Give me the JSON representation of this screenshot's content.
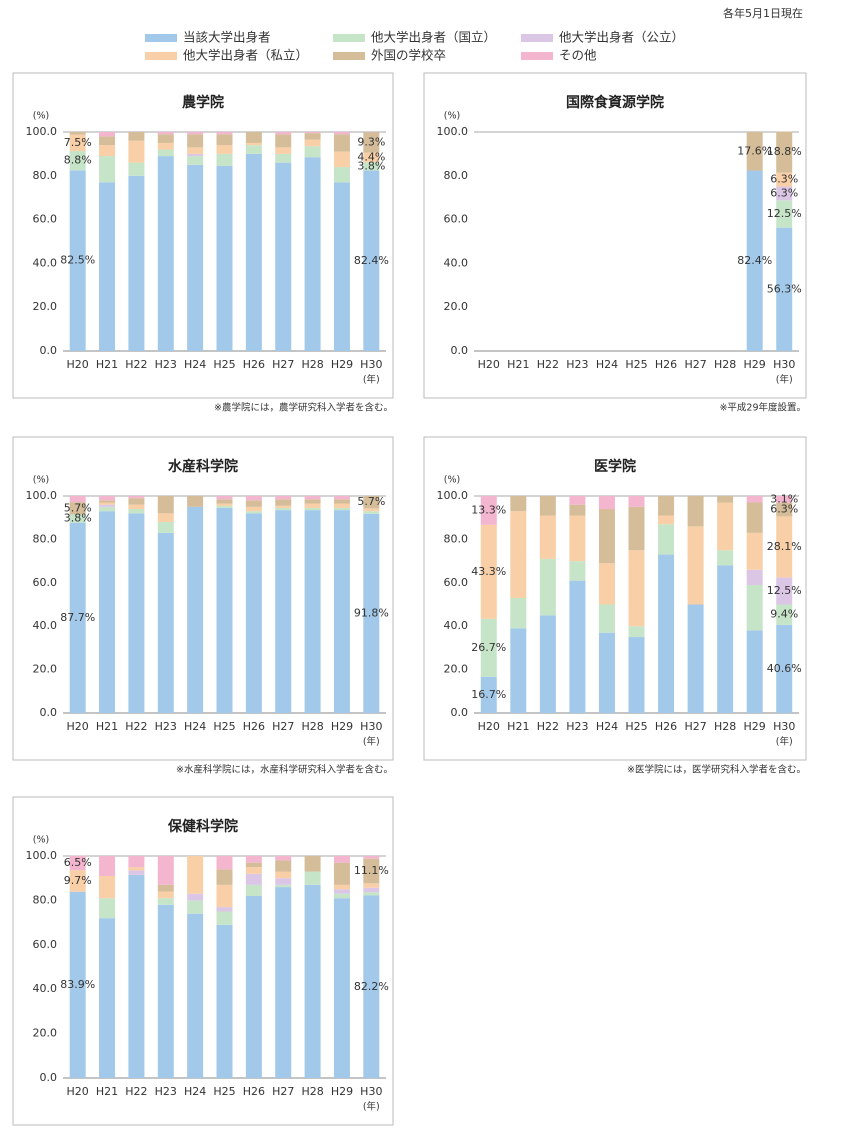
{
  "note": "各年5月1日現在",
  "legend": [
    {
      "name": "当該大学出身者",
      "color": "#a3c9ea"
    },
    {
      "name": "他大学出身者（国立）",
      "color": "#c6e4c8"
    },
    {
      "name": "他大学出身者（公立）",
      "color": "#dcc6e6"
    },
    {
      "name": "他大学出身者（私立）",
      "color": "#f8cfa6"
    },
    {
      "name": "外国の学校卒",
      "color": "#d5bd9a"
    },
    {
      "name": "その他",
      "color": "#f4b6cf"
    }
  ],
  "chart_data": [
    {
      "type": "bar",
      "title": "農学院",
      "y_label": "(%)",
      "x_unit": "(年)",
      "footnote": "※農学院には，農学研究科入学者を含む。",
      "categories": [
        "H20",
        "H21",
        "H22",
        "H23",
        "H24",
        "H25",
        "H26",
        "H27",
        "H28",
        "H29",
        "H30"
      ],
      "ylim": [
        0,
        100
      ],
      "yticks": [
        {
          "value": 0,
          "label": "0.0"
        },
        {
          "value": 20,
          "label": "20.0"
        },
        {
          "value": 40,
          "label": "40.0"
        },
        {
          "value": 60,
          "label": "60.0"
        },
        {
          "value": 80,
          "label": "80.0"
        },
        {
          "value": 100,
          "label": "100.0"
        }
      ],
      "series": [
        {
          "values": [
            82.5,
            77,
            80,
            89,
            85,
            84.5,
            90,
            86,
            88.5,
            77,
            82.4
          ],
          "value_labels": [
            "82.5%",
            null,
            null,
            null,
            null,
            null,
            null,
            null,
            null,
            null,
            "82.4%"
          ]
        },
        {
          "values": [
            8.8,
            12,
            6,
            3,
            4,
            5.5,
            4,
            4,
            5,
            7,
            3.8
          ],
          "value_labels": [
            "8.8%",
            null,
            null,
            null,
            null,
            null,
            null,
            null,
            null,
            null,
            "3.8%"
          ]
        },
        {
          "values": [
            0,
            0,
            0,
            0,
            1,
            0,
            0,
            0,
            0,
            0,
            0
          ]
        },
        {
          "values": [
            7.5,
            5,
            10,
            3,
            3,
            4,
            1,
            3,
            3,
            7,
            4.4
          ],
          "value_labels": [
            "7.5%",
            null,
            null,
            null,
            null,
            null,
            null,
            null,
            null,
            null,
            "4.4%"
          ]
        },
        {
          "values": [
            1.2,
            4,
            4,
            4,
            6,
            5,
            5,
            6,
            3,
            8,
            9.3
          ],
          "value_labels": [
            null,
            null,
            null,
            null,
            null,
            null,
            null,
            null,
            null,
            null,
            "9.3%"
          ]
        },
        {
          "values": [
            0,
            2,
            0,
            1,
            1,
            1,
            0,
            1,
            0.5,
            1,
            0.1
          ]
        }
      ]
    },
    {
      "type": "bar",
      "title": "国際食資源学院",
      "y_label": "(%)",
      "x_unit": "(年)",
      "footnote": "※平成29年度設置。",
      "categories": [
        "H20",
        "H21",
        "H22",
        "H23",
        "H24",
        "H25",
        "H26",
        "H27",
        "H28",
        "H29",
        "H30"
      ],
      "ylim": [
        0,
        100
      ],
      "yticks": [
        {
          "value": 0,
          "label": "0.0"
        },
        {
          "value": 20,
          "label": "20.0"
        },
        {
          "value": 40,
          "label": "40.0"
        },
        {
          "value": 60,
          "label": "60.0"
        },
        {
          "value": 80,
          "label": "80.0"
        },
        {
          "value": 100,
          "label": "100.0"
        }
      ],
      "series": [
        {
          "values": [
            null,
            null,
            null,
            null,
            null,
            null,
            null,
            null,
            null,
            82.4,
            56.3
          ],
          "value_labels": [
            null,
            null,
            null,
            null,
            null,
            null,
            null,
            null,
            null,
            "82.4%",
            "56.3%"
          ]
        },
        {
          "values": [
            null,
            null,
            null,
            null,
            null,
            null,
            null,
            null,
            null,
            0,
            12.5
          ],
          "value_labels": [
            null,
            null,
            null,
            null,
            null,
            null,
            null,
            null,
            null,
            null,
            "12.5%"
          ]
        },
        {
          "values": [
            null,
            null,
            null,
            null,
            null,
            null,
            null,
            null,
            null,
            0,
            6.3
          ],
          "value_labels": [
            null,
            null,
            null,
            null,
            null,
            null,
            null,
            null,
            null,
            null,
            "6.3%"
          ]
        },
        {
          "values": [
            null,
            null,
            null,
            null,
            null,
            null,
            null,
            null,
            null,
            0,
            6.3
          ],
          "value_labels": [
            null,
            null,
            null,
            null,
            null,
            null,
            null,
            null,
            null,
            null,
            "6.3%"
          ]
        },
        {
          "values": [
            null,
            null,
            null,
            null,
            null,
            null,
            null,
            null,
            null,
            17.6,
            18.8
          ],
          "value_labels": [
            null,
            null,
            null,
            null,
            null,
            null,
            null,
            null,
            null,
            "17.6%",
            "18.8%"
          ]
        },
        {
          "values": [
            null,
            null,
            null,
            null,
            null,
            null,
            null,
            null,
            null,
            0,
            0
          ]
        }
      ]
    },
    {
      "type": "bar",
      "title": "水産科学院",
      "y_label": "(%)",
      "x_unit": "(年)",
      "footnote": "※水産科学院には，水産科学研究科入学者を含む。",
      "categories": [
        "H20",
        "H21",
        "H22",
        "H23",
        "H24",
        "H25",
        "H26",
        "H27",
        "H28",
        "H29",
        "H30"
      ],
      "ylim": [
        0,
        100
      ],
      "yticks": [
        {
          "value": 0,
          "label": "0.0"
        },
        {
          "value": 20,
          "label": "20.0"
        },
        {
          "value": 40,
          "label": "40.0"
        },
        {
          "value": 60,
          "label": "60.0"
        },
        {
          "value": 80,
          "label": "80.0"
        },
        {
          "value": 100,
          "label": "100.0"
        }
      ],
      "series": [
        {
          "values": [
            87.7,
            93,
            92,
            83,
            95,
            94.5,
            92,
            93.5,
            93.5,
            93.5,
            91.8
          ],
          "value_labels": [
            "87.7%",
            null,
            null,
            null,
            null,
            null,
            null,
            null,
            null,
            null,
            "91.8%"
          ]
        },
        {
          "values": [
            3.8,
            2,
            2,
            5,
            0,
            1,
            1,
            1,
            1,
            1,
            1.2
          ],
          "value_labels": [
            "3.8%",
            null,
            null,
            null,
            null,
            null,
            null,
            null,
            null,
            null,
            null
          ]
        },
        {
          "values": [
            0,
            1,
            0,
            0,
            0,
            0,
            0,
            0,
            0,
            0,
            0
          ]
        },
        {
          "values": [
            0,
            1,
            2,
            4,
            0,
            1,
            2,
            1,
            2,
            2,
            1.3
          ]
        },
        {
          "values": [
            5.7,
            1,
            3,
            8,
            5,
            2,
            3,
            3,
            2,
            2,
            5.7
          ],
          "value_labels": [
            "5.7%",
            null,
            null,
            null,
            null,
            null,
            null,
            null,
            null,
            null,
            "5.7%"
          ]
        },
        {
          "values": [
            2.8,
            2,
            1,
            0,
            0,
            1.5,
            2,
            1.5,
            1.5,
            1.5,
            0
          ]
        }
      ]
    },
    {
      "type": "bar",
      "title": "医学院",
      "y_label": "(%)",
      "x_unit": "(年)",
      "footnote": "※医学院には，医学研究科入学者を含む。",
      "categories": [
        "H20",
        "H21",
        "H22",
        "H23",
        "H24",
        "H25",
        "H26",
        "H27",
        "H28",
        "H29",
        "H30"
      ],
      "ylim": [
        0,
        100
      ],
      "yticks": [
        {
          "value": 0,
          "label": "0.0"
        },
        {
          "value": 20,
          "label": "20.0"
        },
        {
          "value": 40,
          "label": "40.0"
        },
        {
          "value": 60,
          "label": "60.0"
        },
        {
          "value": 80,
          "label": "80.0"
        },
        {
          "value": 100,
          "label": "100.0"
        }
      ],
      "series": [
        {
          "values": [
            16.7,
            39,
            45,
            61,
            37,
            35,
            73,
            50,
            68,
            38,
            40.6
          ],
          "value_labels": [
            "16.7%",
            null,
            null,
            null,
            null,
            null,
            null,
            null,
            null,
            null,
            "40.6%"
          ]
        },
        {
          "values": [
            26.7,
            14,
            26,
            9,
            13,
            5,
            14,
            0,
            7,
            21,
            9.4
          ],
          "value_labels": [
            "26.7%",
            null,
            null,
            null,
            null,
            null,
            null,
            null,
            null,
            null,
            "9.4%"
          ]
        },
        {
          "values": [
            0,
            0,
            0,
            0,
            0,
            0,
            0,
            0,
            0,
            7,
            12.5
          ],
          "value_labels": [
            null,
            null,
            null,
            null,
            null,
            null,
            null,
            null,
            null,
            null,
            "12.5%"
          ]
        },
        {
          "values": [
            43.3,
            40,
            20,
            21,
            19,
            35,
            4,
            36,
            22,
            17,
            28.1
          ],
          "value_labels": [
            "43.3%",
            null,
            null,
            null,
            null,
            null,
            null,
            null,
            null,
            null,
            "28.1%"
          ]
        },
        {
          "values": [
            0,
            7,
            9,
            5,
            25,
            20,
            9,
            14,
            3,
            14,
            6.3
          ],
          "value_labels": [
            null,
            null,
            null,
            null,
            null,
            null,
            null,
            null,
            null,
            null,
            "6.3%"
          ]
        },
        {
          "values": [
            13.3,
            0,
            0,
            4,
            6,
            5,
            0,
            0,
            0,
            3,
            3.1
          ],
          "value_labels": [
            "13.3%",
            null,
            null,
            null,
            null,
            null,
            null,
            null,
            null,
            null,
            "3.1%"
          ]
        }
      ]
    },
    {
      "type": "bar",
      "title": "保健科学院",
      "y_label": "(%)",
      "x_unit": "(年)",
      "categories": [
        "H20",
        "H21",
        "H22",
        "H23",
        "H24",
        "H25",
        "H26",
        "H27",
        "H28",
        "H29",
        "H30"
      ],
      "ylim": [
        0,
        100
      ],
      "yticks": [
        {
          "value": 0,
          "label": "0.0"
        },
        {
          "value": 20,
          "label": "20.0"
        },
        {
          "value": 40,
          "label": "40.0"
        },
        {
          "value": 60,
          "label": "60.0"
        },
        {
          "value": 80,
          "label": "80.0"
        },
        {
          "value": 100,
          "label": "100.0"
        }
      ],
      "series": [
        {
          "values": [
            83.9,
            72,
            91.5,
            78,
            74,
            69,
            82,
            86,
            87,
            81,
            82.2
          ],
          "value_labels": [
            "83.9%",
            null,
            null,
            null,
            null,
            null,
            null,
            null,
            null,
            null,
            "82.2%"
          ]
        },
        {
          "values": [
            0,
            9,
            0,
            3,
            6,
            6,
            5,
            1,
            6,
            2,
            1.5
          ]
        },
        {
          "values": [
            0,
            0,
            2,
            0,
            3,
            2,
            5,
            3,
            0,
            2,
            2
          ]
        },
        {
          "values": [
            9.7,
            10,
            1.5,
            3,
            17,
            10,
            3,
            3,
            0,
            2,
            2
          ],
          "value_labels": [
            "9.7%",
            null,
            null,
            null,
            null,
            null,
            null,
            null,
            null,
            null,
            null
          ]
        },
        {
          "values": [
            0,
            0,
            0,
            3,
            0,
            7,
            2,
            5,
            7,
            10,
            11.1
          ],
          "value_labels": [
            null,
            null,
            null,
            null,
            null,
            null,
            null,
            null,
            null,
            null,
            "11.1%"
          ]
        },
        {
          "values": [
            6.5,
            9,
            5,
            13,
            0,
            6,
            3,
            2,
            0,
            3,
            1.2
          ],
          "value_labels": [
            "6.5%",
            null,
            null,
            null,
            null,
            null,
            null,
            null,
            null,
            null,
            null
          ]
        }
      ]
    }
  ]
}
